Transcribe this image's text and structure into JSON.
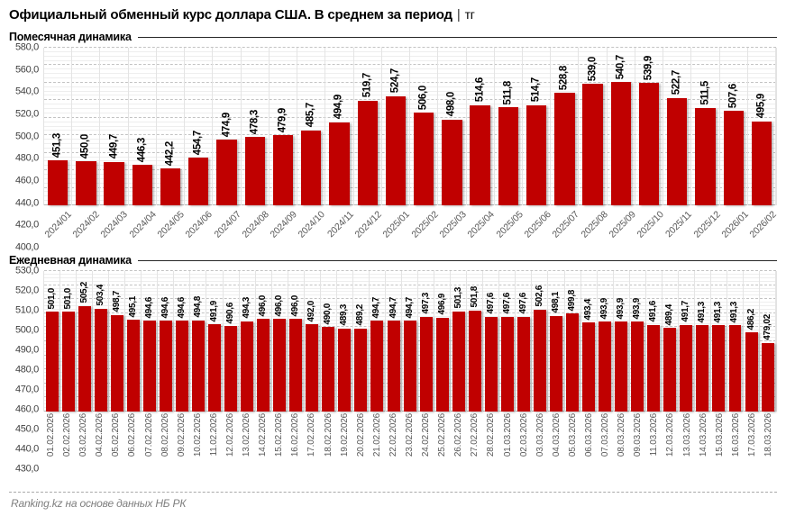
{
  "page": {
    "title": "Официальный обменный курс доллара США. В среднем за период",
    "title_separator": "|",
    "title_unit": "тг",
    "footer": "Ranking.kz на основе данных НБ РК"
  },
  "colors": {
    "bar": "#c00000",
    "grid_major": "#c3c3c3",
    "grid_minor": "#eeeeee",
    "axis_text": "#595959",
    "value_label_text": "#000000",
    "footer_text": "#7f7f7f"
  },
  "chart_data": [
    {
      "type": "bar",
      "title": "Помесячная динамика",
      "xlabel": "",
      "ylabel": "",
      "ylim": [
        400,
        580
      ],
      "ytick_step": 20,
      "grid": true,
      "legend_position": "none",
      "categories": [
        "2024/01",
        "2024/02",
        "2024/03",
        "2024/04",
        "2024/05",
        "2024/06",
        "2024/07",
        "2024/08",
        "2024/09",
        "2024/10",
        "2024/11",
        "2024/12",
        "2025/01",
        "2025/02",
        "2025/03",
        "2025/04",
        "2025/05",
        "2025/06",
        "2025/07",
        "2025/08",
        "2025/09",
        "2025/10",
        "2025/11",
        "2025/12",
        "2026/01",
        "2026/02"
      ],
      "values": [
        451.3,
        450.0,
        449.7,
        446.3,
        442.2,
        454.7,
        474.9,
        478.3,
        479.9,
        485.7,
        494.9,
        519.7,
        524.7,
        506.0,
        498.0,
        514.6,
        511.8,
        514.7,
        528.8,
        539.0,
        540.7,
        539.9,
        522.7,
        511.5,
        507.6,
        495.9
      ],
      "value_labels": [
        "451,3",
        "450,0",
        "449,7",
        "446,3",
        "442,2",
        "454,7",
        "474,9",
        "478,3",
        "479,9",
        "485,7",
        "494,9",
        "519,7",
        "524,7",
        "506,0",
        "498,0",
        "514,6",
        "511,8",
        "514,7",
        "528,8",
        "539,0",
        "540,7",
        "539,9",
        "522,7",
        "511,5",
        "507,6",
        "495,9"
      ]
    },
    {
      "type": "bar",
      "title": "Ежедневная динамика",
      "xlabel": "",
      "ylabel": "",
      "ylim": [
        430,
        530
      ],
      "ytick_step": 10,
      "grid": true,
      "legend_position": "none",
      "categories": [
        "01.02.2026",
        "02.02.2026",
        "03.02.2026",
        "04.02.2026",
        "05.02.2026",
        "06.02.2026",
        "07.02.2026",
        "08.02.2026",
        "09.02.2026",
        "10.02.2026",
        "11.02.2026",
        "12.02.2026",
        "13.02.2026",
        "14.02.2026",
        "15.02.2026",
        "16.02.2026",
        "17.02.2026",
        "18.02.2026",
        "19.02.2026",
        "20.02.2026",
        "21.02.2026",
        "22.02.2026",
        "23.02.2026",
        "24.02.2026",
        "25.02.2026",
        "26.02.2026",
        "27.02.2026",
        "28.02.2026",
        "01.03.2026",
        "02.03.2026",
        "03.03.2026",
        "04.03.2026",
        "05.03.2026",
        "06.03.2026",
        "07.03.2026",
        "08.03.2026",
        "09.03.2026",
        "11.03.2026",
        "12.03.2026",
        "13.03.2026",
        "14.03.2026",
        "15.03.2026",
        "16.03.2026",
        "17.03.2026",
        "18.03.2026"
      ],
      "values": [
        501.0,
        501.0,
        505.2,
        503.4,
        498.7,
        495.1,
        494.6,
        494.6,
        494.6,
        494.8,
        491.9,
        490.6,
        494.3,
        496.0,
        496.0,
        496.0,
        492.0,
        490.0,
        489.3,
        489.2,
        494.7,
        494.7,
        494.7,
        497.3,
        496.9,
        501.3,
        501.8,
        497.6,
        497.6,
        497.6,
        502.6,
        498.1,
        499.8,
        493.4,
        493.9,
        493.9,
        493.9,
        491.6,
        489.4,
        491.7,
        491.3,
        491.3,
        491.3,
        486.2,
        479.02
      ],
      "value_labels": [
        "501,0",
        "501,0",
        "505,2",
        "503,4",
        "498,7",
        "495,1",
        "494,6",
        "494,6",
        "494,6",
        "494,8",
        "491,9",
        "490,6",
        "494,3",
        "496,0",
        "496,0",
        "496,0",
        "492,0",
        "490,0",
        "489,3",
        "489,2",
        "494,7",
        "494,7",
        "494,7",
        "497,3",
        "496,9",
        "501,3",
        "501,8",
        "497,6",
        "497,6",
        "497,6",
        "502,6",
        "498,1",
        "499,8",
        "493,4",
        "493,9",
        "493,9",
        "493,9",
        "491,6",
        "489,4",
        "491,7",
        "491,3",
        "491,3",
        "491,3",
        "486,2",
        "479,02"
      ]
    }
  ]
}
